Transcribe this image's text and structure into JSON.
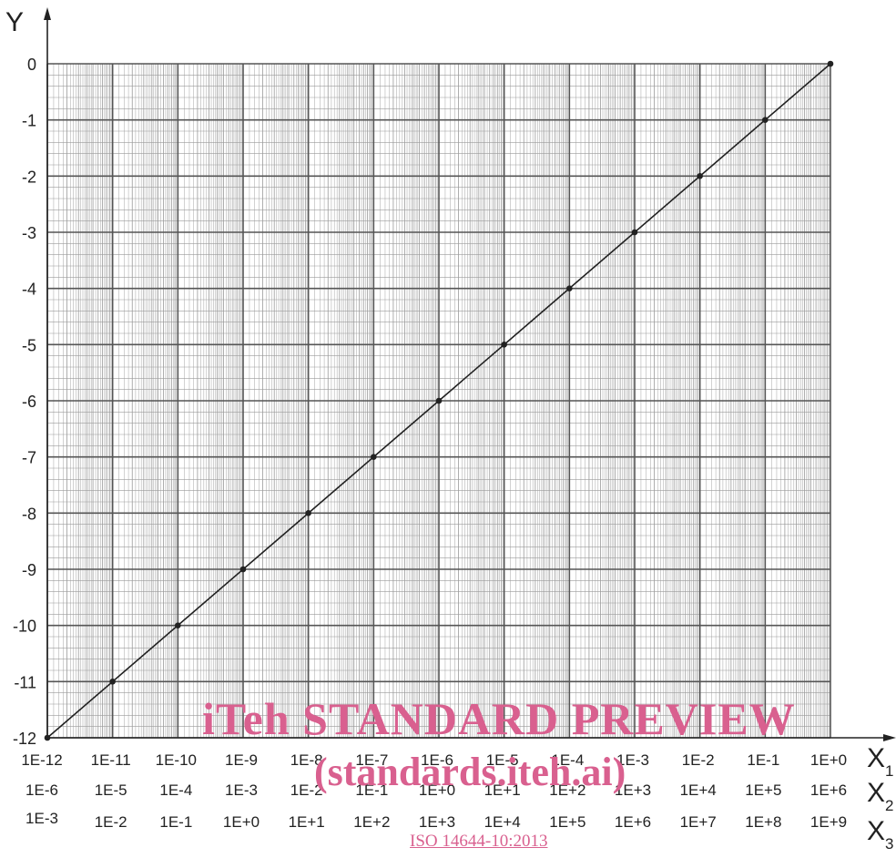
{
  "watermark": {
    "line1": "iTeh STANDARD PREVIEW",
    "line2": "(standards.iteh.ai)",
    "doc_ref": "ISO 14644-10:2013"
  },
  "colors": {
    "line": "#222222",
    "grid_major": "#555555",
    "grid_minor": "#9a9a9a",
    "watermark": "#d9608f"
  },
  "chart_data": {
    "type": "line",
    "title": "",
    "ylabel": "Y",
    "ylim": [
      -12,
      0
    ],
    "yticks": [
      "0",
      "-1",
      "-2",
      "-3",
      "-4",
      "-5",
      "-6",
      "-7",
      "-8",
      "-9",
      "-10",
      "-11",
      "-12"
    ],
    "xscale": "log",
    "x_axes": [
      {
        "name": "X1",
        "label": "X",
        "subscript": "1",
        "ticks": [
          "1E-12",
          "1E-11",
          "1E-10",
          "1E-9",
          "1E-8",
          "1E-7",
          "1E-6",
          "1E-5",
          "1E-4",
          "1E-3",
          "1E-2",
          "1E-1",
          "1E+0"
        ]
      },
      {
        "name": "X2",
        "label": "X",
        "subscript": "2",
        "ticks": [
          "1E-6",
          "1E-5",
          "1E-4",
          "1E-3",
          "1E-2",
          "1E-1",
          "1E+0",
          "1E+1",
          "1E+2",
          "1E+3",
          "1E+4",
          "1E+5",
          "1E+6"
        ]
      },
      {
        "name": "X3",
        "label": "X",
        "subscript": "3",
        "ticks": [
          "1E-3",
          "1E-2",
          "1E-1",
          "1E+0",
          "1E+1",
          "1E+2",
          "1E+3",
          "1E+4",
          "1E+5",
          "1E+6",
          "1E+7",
          "1E+8",
          "1E+9"
        ]
      }
    ],
    "grid": true,
    "series": [
      {
        "x": [
          1e-12,
          1e-11,
          1e-10,
          1e-09,
          1e-08,
          1e-07,
          1e-06,
          1e-05,
          0.0001,
          0.001,
          0.01,
          0.1,
          1
        ],
        "y": [
          -12,
          -11,
          -10,
          -9,
          -8,
          -7,
          -6,
          -5,
          -4,
          -3,
          -2,
          -1,
          0
        ]
      }
    ]
  }
}
